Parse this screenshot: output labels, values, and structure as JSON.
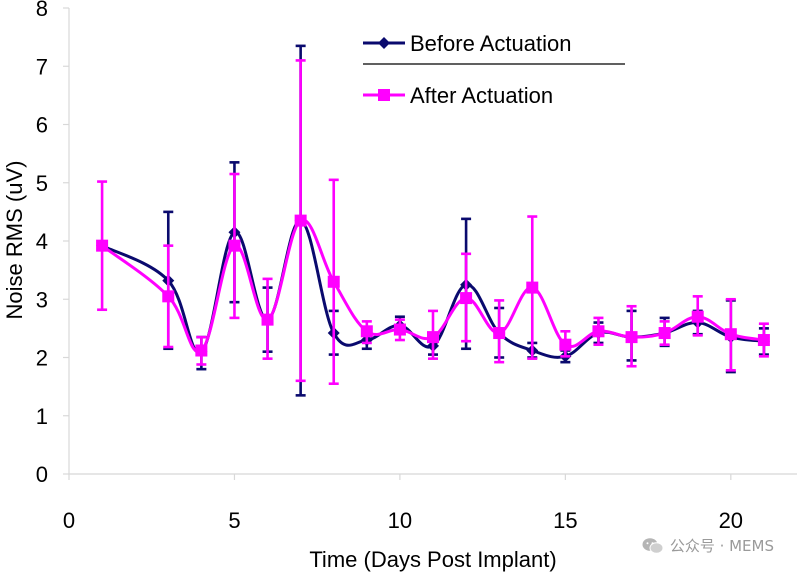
{
  "chart_data": {
    "type": "line",
    "title": "",
    "xlabel": "Time (Days Post Implant)",
    "ylabel": "Noise RMS (uV)",
    "xlim": [
      0,
      22
    ],
    "ylim": [
      0,
      8
    ],
    "xticks": [
      0,
      5,
      10,
      15,
      20
    ],
    "yticks": [
      0,
      1,
      2,
      3,
      4,
      5,
      6,
      7,
      8
    ],
    "grid": false,
    "legend_position": "top-right",
    "series": [
      {
        "name": "Before Actuation",
        "color": "#0a0a6e",
        "marker": "diamond",
        "points": [
          {
            "x": 1,
            "y": 3.92,
            "err_low": 3.92,
            "err_high": 3.92
          },
          {
            "x": 3,
            "y": 3.32,
            "err_low": 2.15,
            "err_high": 4.5
          },
          {
            "x": 4,
            "y": 2.1,
            "err_low": 1.8,
            "err_high": 2.35
          },
          {
            "x": 5,
            "y": 4.15,
            "err_low": 2.95,
            "err_high": 5.35
          },
          {
            "x": 6,
            "y": 2.65,
            "err_low": 2.1,
            "err_high": 3.2
          },
          {
            "x": 7,
            "y": 4.35,
            "err_low": 1.35,
            "err_high": 7.35
          },
          {
            "x": 8,
            "y": 2.42,
            "err_low": 2.05,
            "err_high": 2.8
          },
          {
            "x": 9,
            "y": 2.3,
            "err_low": 2.15,
            "err_high": 2.45
          },
          {
            "x": 10,
            "y": 2.55,
            "err_low": 2.4,
            "err_high": 2.7
          },
          {
            "x": 11,
            "y": 2.2,
            "err_low": 2.05,
            "err_high": 2.35
          },
          {
            "x": 12,
            "y": 3.25,
            "err_low": 2.15,
            "err_high": 4.38
          },
          {
            "x": 13,
            "y": 2.42,
            "err_low": 2.0,
            "err_high": 2.85
          },
          {
            "x": 14,
            "y": 2.12,
            "err_low": 2.0,
            "err_high": 2.25
          },
          {
            "x": 15,
            "y": 2.02,
            "err_low": 1.92,
            "err_high": 2.12
          },
          {
            "x": 16,
            "y": 2.42,
            "err_low": 2.25,
            "err_high": 2.6
          },
          {
            "x": 17,
            "y": 2.35,
            "err_low": 1.95,
            "err_high": 2.8
          },
          {
            "x": 18,
            "y": 2.42,
            "err_low": 2.2,
            "err_high": 2.68
          },
          {
            "x": 19,
            "y": 2.6,
            "err_low": 2.4,
            "err_high": 2.8
          },
          {
            "x": 20,
            "y": 2.35,
            "err_low": 1.75,
            "err_high": 2.98
          },
          {
            "x": 21,
            "y": 2.28,
            "err_low": 2.05,
            "err_high": 2.5
          }
        ]
      },
      {
        "name": "After Actuation",
        "color": "#ff00ff",
        "marker": "square",
        "points": [
          {
            "x": 1,
            "y": 3.92,
            "err_low": 2.82,
            "err_high": 5.02
          },
          {
            "x": 3,
            "y": 3.05,
            "err_low": 2.18,
            "err_high": 3.92
          },
          {
            "x": 4,
            "y": 2.12,
            "err_low": 1.88,
            "err_high": 2.35
          },
          {
            "x": 5,
            "y": 3.92,
            "err_low": 2.68,
            "err_high": 5.15
          },
          {
            "x": 6,
            "y": 2.65,
            "err_low": 1.98,
            "err_high": 3.35
          },
          {
            "x": 7,
            "y": 4.35,
            "err_low": 1.6,
            "err_high": 7.1
          },
          {
            "x": 8,
            "y": 3.3,
            "err_low": 1.55,
            "err_high": 5.05
          },
          {
            "x": 9,
            "y": 2.45,
            "err_low": 2.25,
            "err_high": 2.62
          },
          {
            "x": 10,
            "y": 2.48,
            "err_low": 2.3,
            "err_high": 2.65
          },
          {
            "x": 11,
            "y": 2.35,
            "err_low": 1.98,
            "err_high": 2.8
          },
          {
            "x": 12,
            "y": 3.02,
            "err_low": 2.28,
            "err_high": 3.78
          },
          {
            "x": 13,
            "y": 2.42,
            "err_low": 1.92,
            "err_high": 2.98
          },
          {
            "x": 14,
            "y": 3.2,
            "err_low": 1.98,
            "err_high": 4.42
          },
          {
            "x": 15,
            "y": 2.22,
            "err_low": 2.02,
            "err_high": 2.45
          },
          {
            "x": 16,
            "y": 2.45,
            "err_low": 2.22,
            "err_high": 2.68
          },
          {
            "x": 17,
            "y": 2.35,
            "err_low": 1.85,
            "err_high": 2.88
          },
          {
            "x": 18,
            "y": 2.42,
            "err_low": 2.22,
            "err_high": 2.62
          },
          {
            "x": 19,
            "y": 2.7,
            "err_low": 2.38,
            "err_high": 3.05
          },
          {
            "x": 20,
            "y": 2.4,
            "err_low": 1.78,
            "err_high": 3.0
          },
          {
            "x": 21,
            "y": 2.3,
            "err_low": 2.02,
            "err_high": 2.58
          }
        ]
      }
    ]
  },
  "watermark": {
    "text": "公众号 · MEMS",
    "icon": "wechat-icon"
  }
}
